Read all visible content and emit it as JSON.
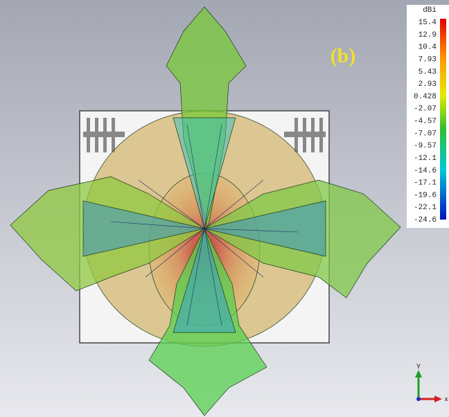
{
  "panel_label": "(b)",
  "colorbar": {
    "unit": "dBi",
    "ticks": [
      "15.4",
      "12.9",
      "10.4",
      "7.93",
      "5.43",
      "2.93",
      "0.428",
      "-2.07",
      "-4.57",
      "-7.07",
      "-9.57",
      "-12.1",
      "-14.6",
      "-17.1",
      "-19.6",
      "-22.1",
      "-24.6"
    ]
  },
  "axes": {
    "y": "Y",
    "x": "x"
  }
}
